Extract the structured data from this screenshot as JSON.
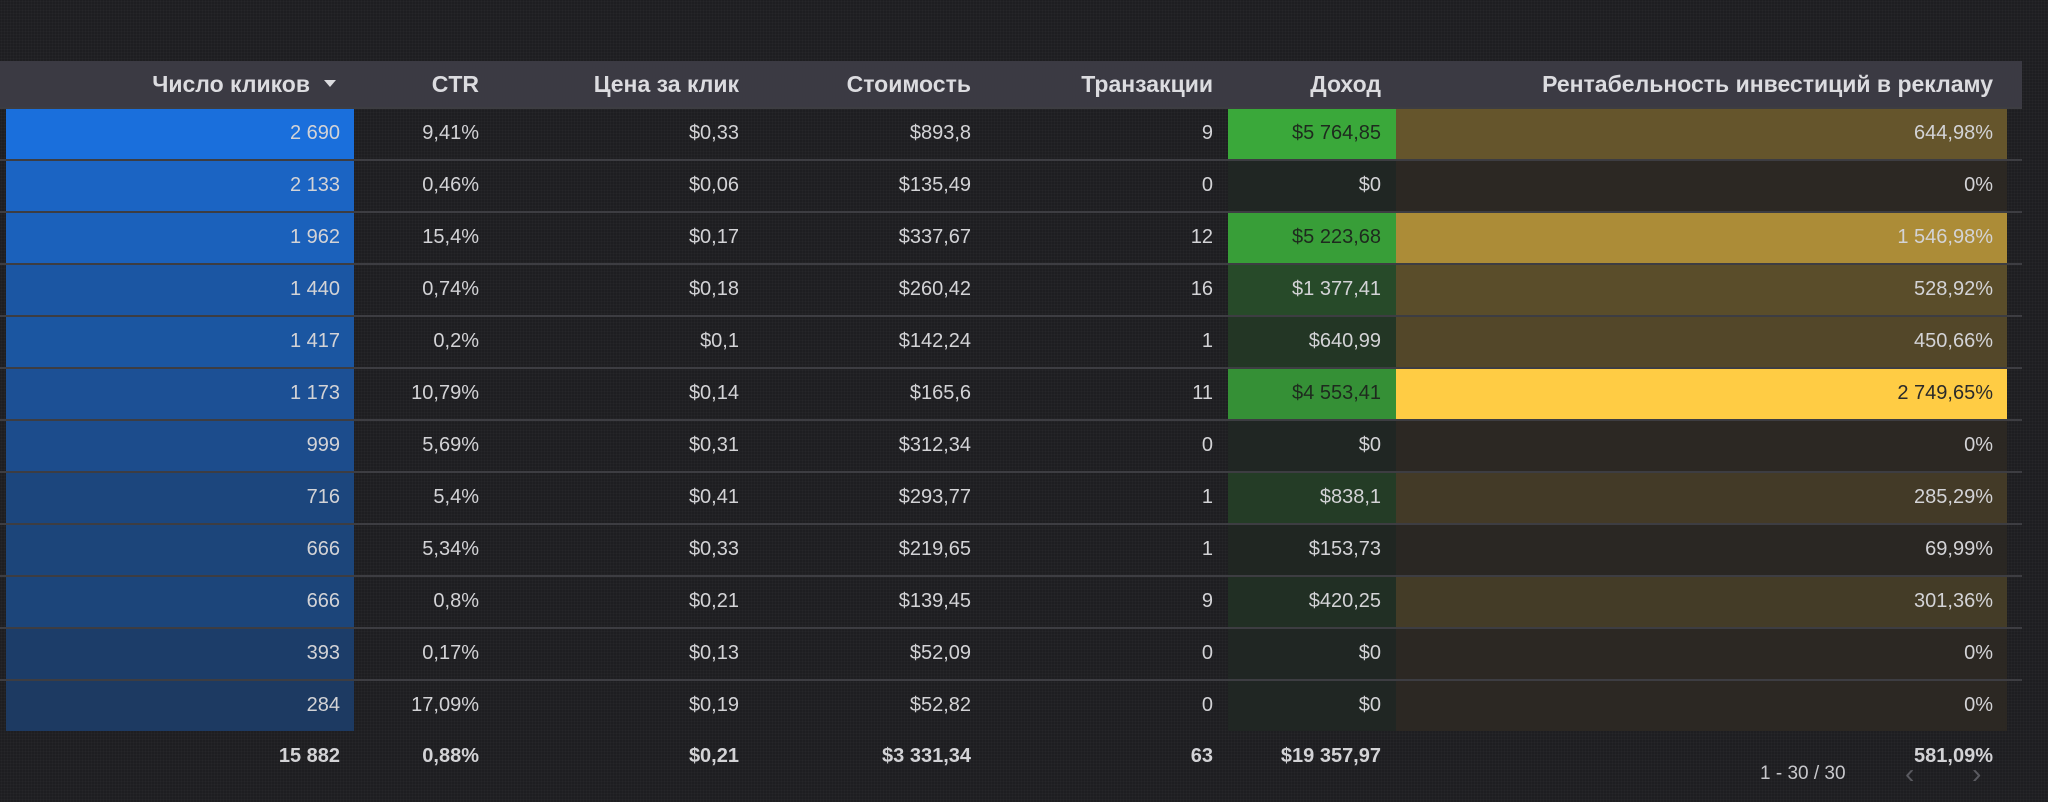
{
  "colors": {
    "clicks_heat": "#1a6fdc",
    "revenue_heat": "#3aa83a",
    "roas_heat": "#ffcc44",
    "header_bg": "#3b3a43"
  },
  "table": {
    "headers": [
      "Число кликов",
      "CTR",
      "Цена за клик",
      "Стоимость",
      "Транзакции",
      "Доход",
      "Рентабельность инвестиций в рекламу"
    ],
    "sort_icon": "caret-down-icon",
    "rows": [
      [
        "2 690",
        "9,41%",
        "$0,33",
        "$893,8",
        "9",
        "$5 764,85",
        "644,98%"
      ],
      [
        "2 133",
        "0,46%",
        "$0,06",
        "$135,49",
        "0",
        "$0",
        "0%"
      ],
      [
        "1 962",
        "15,4%",
        "$0,17",
        "$337,67",
        "12",
        "$5 223,68",
        "1 546,98%"
      ],
      [
        "1 440",
        "0,74%",
        "$0,18",
        "$260,42",
        "16",
        "$1 377,41",
        "528,92%"
      ],
      [
        "1 417",
        "0,2%",
        "$0,1",
        "$142,24",
        "1",
        "$640,99",
        "450,66%"
      ],
      [
        "1 173",
        "10,79%",
        "$0,14",
        "$165,6",
        "11",
        "$4 553,41",
        "2 749,65%"
      ],
      [
        "999",
        "5,69%",
        "$0,31",
        "$312,34",
        "0",
        "$0",
        "0%"
      ],
      [
        "716",
        "5,4%",
        "$0,41",
        "$293,77",
        "1",
        "$838,1",
        "285,29%"
      ],
      [
        "666",
        "5,34%",
        "$0,33",
        "$219,65",
        "1",
        "$153,73",
        "69,99%"
      ],
      [
        "666",
        "0,8%",
        "$0,21",
        "$139,45",
        "9",
        "$420,25",
        "301,36%"
      ],
      [
        "393",
        "0,17%",
        "$0,13",
        "$52,09",
        "0",
        "$0",
        "0%"
      ],
      [
        "284",
        "17,09%",
        "$0,19",
        "$52,82",
        "0",
        "$0",
        "0%"
      ]
    ],
    "totals": [
      "15 882",
      "0,88%",
      "$0,21",
      "$3 331,34",
      "63",
      "$19 357,97",
      "581,09%"
    ]
  },
  "pagination": {
    "range_label": "1 - 30 / 30",
    "prev_icon": "chevron-left-icon",
    "next_icon": "chevron-right-icon"
  }
}
